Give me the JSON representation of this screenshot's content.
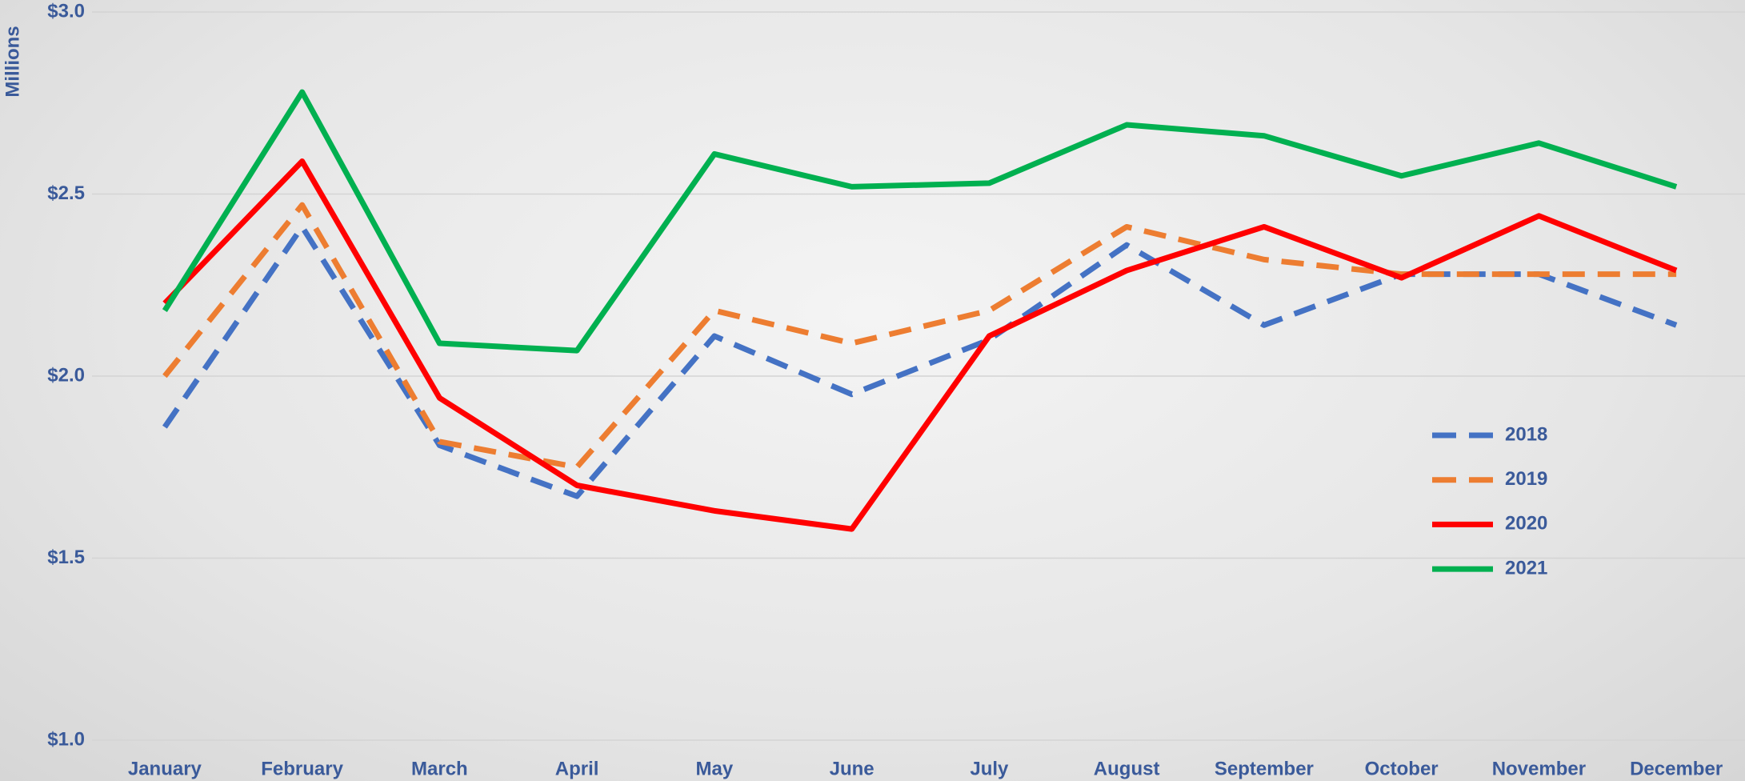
{
  "chart_data": {
    "type": "line",
    "y_axis_label": "Millions",
    "categories": [
      "January",
      "February",
      "March",
      "April",
      "May",
      "June",
      "July",
      "August",
      "September",
      "October",
      "November",
      "December"
    ],
    "series": [
      {
        "name": "2018",
        "color": "#4472c4",
        "style": "dashed",
        "values": [
          1.86,
          2.41,
          1.81,
          1.67,
          2.11,
          1.95,
          2.1,
          2.36,
          2.14,
          2.28,
          2.28,
          2.14
        ]
      },
      {
        "name": "2019",
        "color": "#ed7d31",
        "style": "dashed",
        "values": [
          2.0,
          2.47,
          1.82,
          1.75,
          2.18,
          2.09,
          2.18,
          2.41,
          2.32,
          2.28,
          2.28,
          2.28
        ]
      },
      {
        "name": "2020",
        "color": "#ff0000",
        "style": "solid",
        "values": [
          2.2,
          2.59,
          1.94,
          1.7,
          1.63,
          1.58,
          2.11,
          2.29,
          2.41,
          2.27,
          2.44,
          2.29
        ]
      },
      {
        "name": "2021",
        "color": "#00b050",
        "style": "solid",
        "values": [
          2.18,
          2.78,
          2.09,
          2.07,
          2.61,
          2.52,
          2.53,
          2.69,
          2.66,
          2.55,
          2.64,
          2.52
        ]
      }
    ],
    "ylim": [
      1,
      3
    ],
    "yticks": [
      {
        "value": 1,
        "label": "$1.0"
      },
      {
        "value": 1.5,
        "label": "$1.5"
      },
      {
        "value": 2,
        "label": "$2.0"
      },
      {
        "value": 2.5,
        "label": "$2.5"
      },
      {
        "value": 3,
        "label": "$3.0"
      }
    ],
    "grid": true,
    "legend": "right"
  }
}
